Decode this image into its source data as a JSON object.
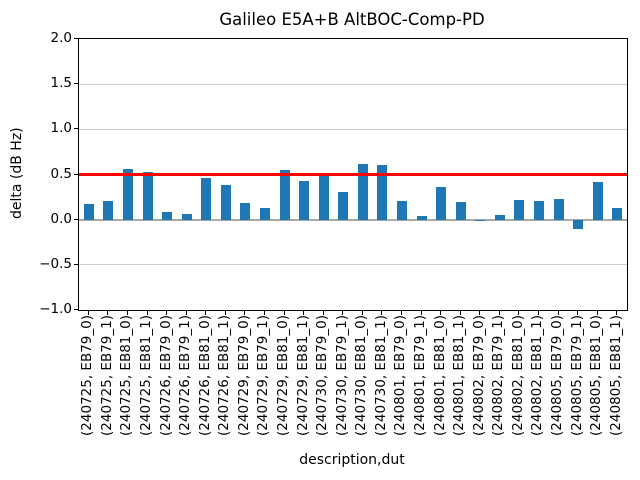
{
  "chart_data": {
    "type": "bar",
    "title": "Galileo E5A+B AltBOC-Comp-PD",
    "xlabel": "description,dut",
    "ylabel": "delta (dB Hz)",
    "ylim": [
      -1.0,
      2.0
    ],
    "yticks": [
      2.0,
      1.5,
      1.0,
      0.5,
      0.0,
      -0.5,
      -1.0
    ],
    "ytick_labels": [
      "2.0",
      "1.5",
      "1.0",
      "0.5",
      "0.0",
      "−0.5",
      "−1.0"
    ],
    "grid": true,
    "legend": "none",
    "bar_color": "#1f77b4",
    "reference_line": {
      "y": 0.5,
      "color": "#ff0000"
    },
    "zero_line": {
      "y": 0.0,
      "color": "#a8a8a8"
    },
    "categories": [
      "(240725, EB79_0)",
      "(240725, EB79_1)",
      "(240725, EB81_0)",
      "(240725, EB81_1)",
      "(240726, EB79_0)",
      "(240726, EB79_1)",
      "(240726, EB81_0)",
      "(240726, EB81_1)",
      "(240729, EB79_0)",
      "(240729, EB79_1)",
      "(240729, EB81_0)",
      "(240729, EB81_1)",
      "(240730, EB79_0)",
      "(240730, EB79_1)",
      "(240730, EB81_0)",
      "(240730, EB81_1)",
      "(240801, EB79_0)",
      "(240801, EB79_1)",
      "(240801, EB81_0)",
      "(240801, EB81_1)",
      "(240802, EB79_0)",
      "(240802, EB79_1)",
      "(240802, EB81_0)",
      "(240802, EB81_1)",
      "(240805, EB79_0)",
      "(240805, EB79_1)",
      "(240805, EB81_0)",
      "(240805, EB81_1)"
    ],
    "values": [
      0.17,
      0.21,
      0.56,
      0.53,
      0.08,
      0.06,
      0.46,
      0.38,
      0.18,
      0.13,
      0.55,
      0.43,
      0.48,
      0.31,
      0.62,
      0.61,
      0.21,
      0.04,
      0.36,
      0.2,
      -0.02,
      0.05,
      0.22,
      0.21,
      0.23,
      -0.1,
      0.42,
      0.13
    ]
  }
}
